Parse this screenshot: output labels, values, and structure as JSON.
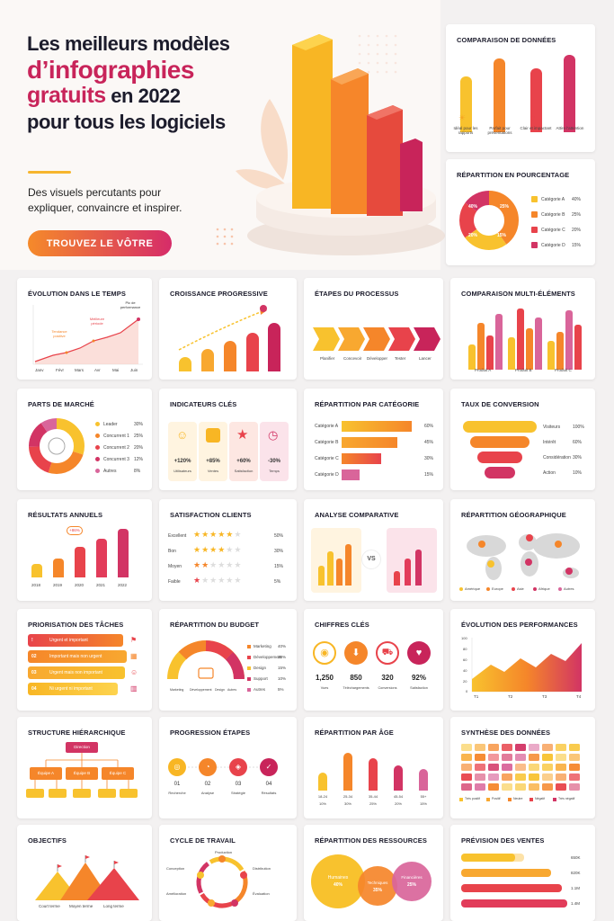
{
  "hero": {
    "title_l1": "Les meilleurs modèles",
    "title_l2": "d’infographies",
    "title_l3a": "gratuits",
    "title_l3b": " en 2022",
    "title_l4": "pour tous les logiciels",
    "subtitle": "Des visuels percutants pour expliquer, convaincre et inspirer.",
    "cta": "TROUVEZ LE VÔTRE"
  },
  "colors": {
    "yellow": "#f8c22e",
    "orange": "#f5862a",
    "red": "#e8434b",
    "crimson": "#d23464",
    "pink": "#d9659a"
  },
  "comparaison": {
    "title": "COMPARAISON DE DONNÉES",
    "items": [
      {
        "icon": "sun-icon",
        "label": "Idéal pour les rapports"
      },
      {
        "icon": "monitor-icon",
        "label": "Parfait pour présentations"
      },
      {
        "icon": "heart-icon",
        "label": "Clair et impactant"
      },
      {
        "icon": "star-icon",
        "label": "Attire l'attention"
      }
    ]
  },
  "pourcentage": {
    "title": "RÉPARTITION EN POURCENTAGE",
    "slices": [
      "40%",
      "25%",
      "20%",
      "15%"
    ],
    "legend": [
      {
        "label": "Catégorie A",
        "value": "40%"
      },
      {
        "label": "Catégorie B",
        "value": "25%"
      },
      {
        "label": "Catégorie C",
        "value": "20%"
      },
      {
        "label": "Catégorie D",
        "value": "15%"
      }
    ]
  },
  "evolution": {
    "title": "ÉVOLUTION DANS LE TEMPS",
    "months": [
      "Janv",
      "Févr",
      "Mars",
      "Avr",
      "Mai",
      "Juin"
    ],
    "notes": [
      "Tendance positive",
      "Meilleure période",
      "Pic de performance"
    ]
  },
  "croissance": {
    "title": "CROISSANCE PROGRESSIVE"
  },
  "etapes": {
    "title": "ÉTAPES DU PROCESSUS",
    "steps": [
      "Planifier",
      "Concevoir",
      "Développer",
      "Tester",
      "Lancer"
    ]
  },
  "multi": {
    "title": "COMPARAISON MULTI-ÉLÉMENTS",
    "products": [
      "Produit A",
      "Produit B",
      "Produit C"
    ]
  },
  "parts": {
    "title": "PARTS DE MARCHÉ",
    "legend": [
      {
        "label": "Leader",
        "value": "30%"
      },
      {
        "label": "Concurrent 1",
        "value": "25%"
      },
      {
        "label": "Concurrent 2",
        "value": "20%"
      },
      {
        "label": "Concurrent 3",
        "value": "12%"
      },
      {
        "label": "Autres",
        "value": "8%"
      }
    ]
  },
  "indicateurs": {
    "title": "INDICATEURS CLÉS",
    "items": [
      {
        "value": "+120%",
        "label": "Utilisateurs",
        "icon": "user-icon"
      },
      {
        "value": "+85%",
        "label": "Ventes",
        "icon": "chart-icon"
      },
      {
        "value": "+60%",
        "label": "Satisfaction",
        "icon": "star-icon"
      },
      {
        "value": "-30%",
        "label": "Temps",
        "icon": "clock-icon"
      }
    ]
  },
  "categorie": {
    "title": "RÉPARTITION PAR CATÉGORIE",
    "rows": [
      {
        "label": "Catégorie A",
        "value": "60%"
      },
      {
        "label": "Catégorie B",
        "value": "45%"
      },
      {
        "label": "Catégorie C",
        "value": "30%"
      },
      {
        "label": "Catégorie D",
        "value": "15%"
      }
    ]
  },
  "conversion": {
    "title": "TAUX DE CONVERSION",
    "rows": [
      {
        "label": "Visiteurs",
        "value": "100%"
      },
      {
        "label": "Intérêt",
        "value": "60%"
      },
      {
        "label": "Considération",
        "value": "30%"
      },
      {
        "label": "Action",
        "value": "10%"
      }
    ]
  },
  "annuels": {
    "title": "RÉSULTATS ANNUELS",
    "years": [
      "2018",
      "2019",
      "2020",
      "2021",
      "2022"
    ],
    "badge": "+86%"
  },
  "satisfaction": {
    "title": "SATISFACTION CLIENTS",
    "rows": [
      {
        "label": "Excellent",
        "value": "50%"
      },
      {
        "label": "Bon",
        "value": "30%"
      },
      {
        "label": "Moyen",
        "value": "15%"
      },
      {
        "label": "Faible",
        "value": "5%"
      }
    ]
  },
  "analyse": {
    "title": "ANALYSE COMPARATIVE",
    "vs": "VS"
  },
  "geo": {
    "title": "RÉPARTITION GÉOGRAPHIQUE",
    "legend": [
      "Amérique",
      "Europe",
      "Asie",
      "Afrique",
      "Autres"
    ]
  },
  "priorisation": {
    "title": "PRIORISATION DES TÂCHES",
    "rows": [
      {
        "n": "!",
        "label": "Urgent et important"
      },
      {
        "n": "02",
        "label": "Important mais non urgent"
      },
      {
        "n": "03",
        "label": "Urgent mais non important"
      },
      {
        "n": "04",
        "label": "Ni urgent ni important"
      }
    ]
  },
  "budget": {
    "title": "RÉPARTITION DU BUDGET",
    "legend": [
      {
        "label": "Marketing",
        "value": "40%"
      },
      {
        "label": "Développement",
        "value": "25%"
      },
      {
        "label": "Design",
        "value": "15%"
      },
      {
        "label": "Support",
        "value": "10%"
      },
      {
        "label": "Autres",
        "value": "5%"
      }
    ],
    "bottom": [
      "Marketing",
      "Développement",
      "Design",
      "Autres"
    ]
  },
  "chiffres": {
    "title": "CHIFFRES CLÉS",
    "items": [
      {
        "value": "1,250",
        "label": "Vues",
        "icon": "eye-icon"
      },
      {
        "value": "850",
        "label": "Téléchargements",
        "icon": "download-icon"
      },
      {
        "value": "320",
        "label": "Conversions",
        "icon": "cart-icon"
      },
      {
        "value": "92%",
        "label": "Satisfaction",
        "icon": "heart-icon"
      }
    ]
  },
  "performances": {
    "title": "ÉVOLUTION DES PERFORMANCES",
    "yticks": [
      "100",
      "80",
      "60",
      "40",
      "20",
      "0"
    ],
    "quarters": [
      "T1",
      "T2",
      "T3",
      "T4"
    ]
  },
  "hierarchie": {
    "title": "STRUCTURE HIÉRARCHIQUE",
    "top": "Direction",
    "mid": [
      "Équipe A",
      "Équipe B",
      "Équipe C"
    ]
  },
  "progression": {
    "title": "PROGRESSION ÉTAPES",
    "steps": [
      {
        "n": "01",
        "label": "Recherche"
      },
      {
        "n": "02",
        "label": "Analyse"
      },
      {
        "n": "03",
        "label": "Stratégie"
      },
      {
        "n": "04",
        "label": "Résultats"
      }
    ]
  },
  "age": {
    "title": "RÉPARTITION PAR ÂGE",
    "groups": [
      {
        "label": "18-24",
        "value": "10%"
      },
      {
        "label": "25-34",
        "value": "30%"
      },
      {
        "label": "35-44",
        "value": "25%"
      },
      {
        "label": "45-54",
        "value": "20%"
      },
      {
        "label": "55+",
        "value": "15%"
      }
    ]
  },
  "synthese": {
    "title": "SYNTHÈSE DES DONNÉES",
    "legend": [
      "Très positif",
      "Positif",
      "Neutre",
      "Négatif",
      "Très négatif"
    ]
  },
  "objectifs": {
    "title": "OBJECTIFS",
    "labels": [
      "Court terme",
      "Moyen terme",
      "Long terme"
    ]
  },
  "cycle": {
    "title": "CYCLE DE TRAVAIL",
    "labels": [
      "Conception",
      "Production",
      "Distribution",
      "Évaluation",
      "Amélioration"
    ]
  },
  "ressources": {
    "title": "RÉPARTITION DES RESSOURCES",
    "items": [
      {
        "label": "Humaines",
        "value": "40%"
      },
      {
        "label": "Techniques",
        "value": "35%"
      },
      {
        "label": "Financières",
        "value": "25%"
      }
    ]
  },
  "ventes": {
    "title": "PRÉVISION DES VENTES",
    "values": [
      "650K",
      "820K",
      "1.1M",
      "1.4M"
    ]
  }
}
